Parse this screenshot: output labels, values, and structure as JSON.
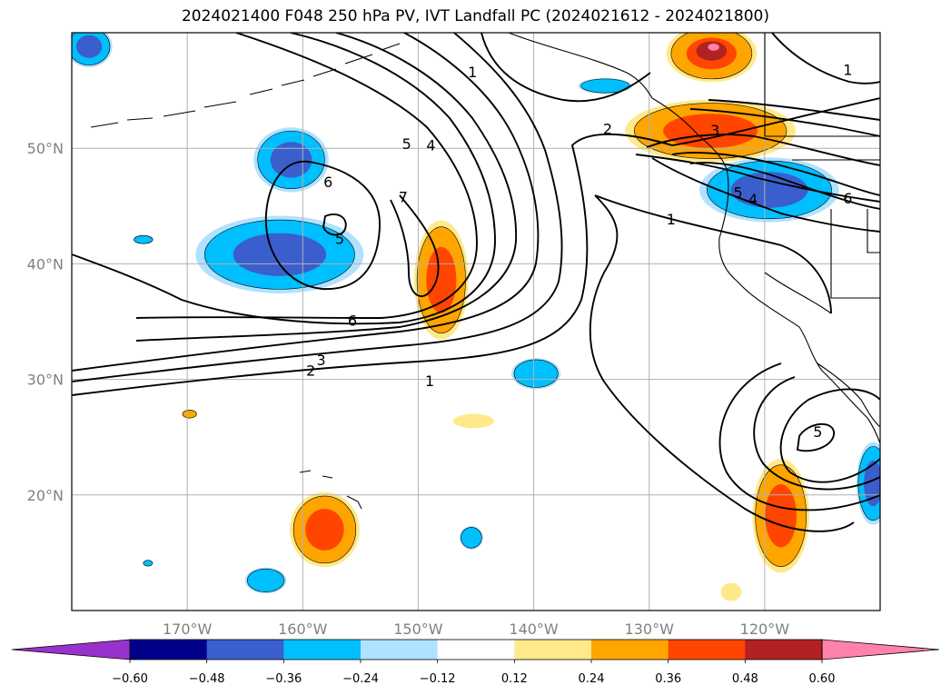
{
  "title": "2024021400 F048 250 hPa PV, IVT Landfall PC (2024021612 - 2024021800)",
  "map": {
    "lon_range": [
      -180,
      -110
    ],
    "lat_range": [
      10,
      60
    ],
    "lon_ticks": [
      {
        "lon": -170,
        "label": "170°W"
      },
      {
        "lon": -160,
        "label": "160°W"
      },
      {
        "lon": -150,
        "label": "150°W"
      },
      {
        "lon": -140,
        "label": "140°W"
      },
      {
        "lon": -130,
        "label": "130°W"
      },
      {
        "lon": -120,
        "label": "120°W"
      }
    ],
    "lat_ticks": [
      {
        "lat": 50,
        "label": "50°N"
      },
      {
        "lat": 40,
        "label": "40°N"
      },
      {
        "lat": 30,
        "label": "30°N"
      },
      {
        "lat": 20,
        "label": "20°N"
      }
    ],
    "grid": true
  },
  "contour_labels": [
    {
      "text": "1",
      "lon": -145.3,
      "lat": 56.6
    },
    {
      "text": "1",
      "lon": -112.8,
      "lat": 56.8
    },
    {
      "text": "2",
      "lon": -133.6,
      "lat": 51.7
    },
    {
      "text": "3",
      "lon": -124.3,
      "lat": 51.6
    },
    {
      "text": "5",
      "lon": -151.0,
      "lat": 50.4
    },
    {
      "text": "4",
      "lon": -148.9,
      "lat": 50.3
    },
    {
      "text": "6",
      "lon": -157.8,
      "lat": 47.1
    },
    {
      "text": "7",
      "lon": -151.3,
      "lat": 45.8
    },
    {
      "text": "5",
      "lon": -156.8,
      "lat": 42.2
    },
    {
      "text": "1",
      "lon": -128.1,
      "lat": 43.9
    },
    {
      "text": "5",
      "lon": -122.3,
      "lat": 46.2
    },
    {
      "text": "4",
      "lon": -121.0,
      "lat": 45.6
    },
    {
      "text": "6",
      "lon": -112.8,
      "lat": 45.7
    },
    {
      "text": "6",
      "lon": -155.7,
      "lat": 35.1
    },
    {
      "text": "3",
      "lon": -158.4,
      "lat": 31.7
    },
    {
      "text": "2",
      "lon": -159.3,
      "lat": 30.8
    },
    {
      "text": "1",
      "lon": -149.0,
      "lat": 29.9
    },
    {
      "text": "5",
      "lon": -115.4,
      "lat": 25.5
    }
  ],
  "shaded_regions": [
    {
      "lon": -178.5,
      "lat": 58.8,
      "rx": 1.8,
      "ry": 1.6,
      "value": -0.36
    },
    {
      "lon": -161.0,
      "lat": 49.0,
      "rx": 2.9,
      "ry": 2.5,
      "value": -0.36
    },
    {
      "lon": -162.0,
      "lat": 40.8,
      "rx": 6.5,
      "ry": 3.0,
      "value": -0.36
    },
    {
      "lon": -173.8,
      "lat": 42.1,
      "rx": 0.8,
      "ry": 0.35,
      "value": -0.24
    },
    {
      "lon": -148.0,
      "lat": 38.6,
      "rx": 2.1,
      "ry": 4.6,
      "value": 0.36
    },
    {
      "lon": -139.8,
      "lat": 30.5,
      "rx": 1.9,
      "ry": 1.2,
      "value": -0.24
    },
    {
      "lon": -169.8,
      "lat": 27.0,
      "rx": 0.6,
      "ry": 0.35,
      "value": 0.24
    },
    {
      "lon": -145.2,
      "lat": 26.4,
      "rx": 1.6,
      "ry": 0.55,
      "value": 0.12
    },
    {
      "lon": -158.1,
      "lat": 17.0,
      "rx": 2.7,
      "ry": 2.9,
      "value": 0.36
    },
    {
      "lon": -145.4,
      "lat": 16.3,
      "rx": 0.9,
      "ry": 0.9,
      "value": -0.24
    },
    {
      "lon": -173.4,
      "lat": 14.1,
      "rx": 0.4,
      "ry": 0.25,
      "value": -0.24
    },
    {
      "lon": -163.2,
      "lat": 12.6,
      "rx": 1.6,
      "ry": 1.0,
      "value": -0.24
    },
    {
      "lon": -133.8,
      "lat": 55.4,
      "rx": 2.1,
      "ry": 0.6,
      "value": -0.24
    },
    {
      "lon": -124.6,
      "lat": 58.2,
      "rx": 3.5,
      "ry": 2.2,
      "value": 0.48
    },
    {
      "lon": -124.7,
      "lat": 51.5,
      "rx": 6.6,
      "ry": 2.4,
      "value": 0.36
    },
    {
      "lon": -119.6,
      "lat": 46.4,
      "rx": 5.4,
      "ry": 2.5,
      "value": -0.36
    },
    {
      "lon": -118.6,
      "lat": 18.2,
      "rx": 2.2,
      "ry": 4.4,
      "value": 0.36
    },
    {
      "lon": -110.6,
      "lat": 21.0,
      "rx": 1.3,
      "ry": 3.2,
      "value": -0.36
    },
    {
      "lon": -122.9,
      "lat": 11.6,
      "rx": 0.8,
      "ry": 0.7,
      "value": 0.12
    }
  ],
  "colorbar": {
    "levels": [
      -0.6,
      -0.48,
      -0.36,
      -0.24,
      -0.12,
      0.12,
      0.24,
      0.36,
      0.48,
      0.6
    ],
    "tick_labels": [
      "−0.60",
      "−0.48",
      "−0.36",
      "−0.24",
      "−0.12",
      "0.12",
      "0.24",
      "0.36",
      "0.48",
      "0.60"
    ],
    "colors": [
      "#9932cc",
      "#00008b",
      "#3a5fcd",
      "#00bfff",
      "#b0e2ff",
      "#ffffff",
      "#ffe98a",
      "#ffa500",
      "#ff4500",
      "#b22222",
      "#ff82ab"
    ],
    "extend": "both"
  }
}
